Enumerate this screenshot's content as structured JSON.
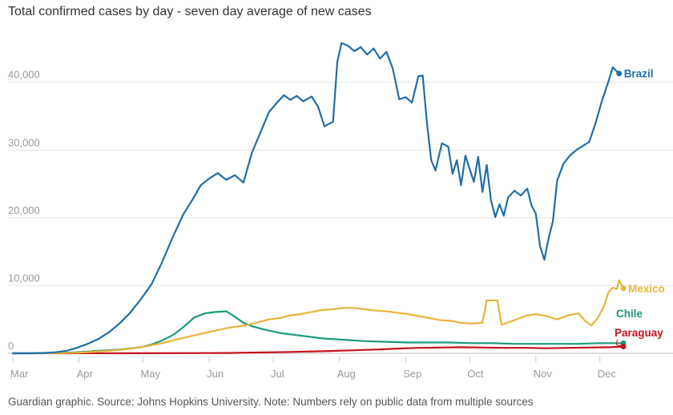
{
  "title": "Total confirmed cases by day - seven day average of new cases",
  "footer": "Guardian graphic. Source: Johns Hopkins University. Note: Numbers rely on public data from multiple sources",
  "chart_data": {
    "type": "line",
    "title": "Total confirmed cases by day - seven day average of new cases",
    "xlabel": "",
    "ylabel": "",
    "x_unit": "days since 1 Mar 2020",
    "xlim": [
      0,
      298
    ],
    "ylim": [
      0,
      46000
    ],
    "grid": true,
    "legend": "inline labels at line ends",
    "x_ticks": [
      {
        "label": "Mar",
        "x": 0
      },
      {
        "label": "Apr",
        "x": 31
      },
      {
        "label": "May",
        "x": 61
      },
      {
        "label": "Jun",
        "x": 92
      },
      {
        "label": "Jul",
        "x": 122
      },
      {
        "label": "Aug",
        "x": 153
      },
      {
        "label": "Sep",
        "x": 184
      },
      {
        "label": "Oct",
        "x": 214
      },
      {
        "label": "Nov",
        "x": 245
      },
      {
        "label": "Dec",
        "x": 275
      }
    ],
    "y_ticks": [
      {
        "label": "0",
        "value": 0
      },
      {
        "label": "10,000",
        "value": 10000
      },
      {
        "label": "20,000",
        "value": 20000
      },
      {
        "label": "30,000",
        "value": 30000
      },
      {
        "label": "40,000",
        "value": 40000
      }
    ],
    "series": [
      {
        "name": "Brazil",
        "color": "#1f6ea8",
        "points": [
          [
            0,
            0
          ],
          [
            10,
            10
          ],
          [
            15,
            60
          ],
          [
            20,
            150
          ],
          [
            25,
            350
          ],
          [
            30,
            800
          ],
          [
            35,
            1400
          ],
          [
            40,
            2100
          ],
          [
            45,
            3100
          ],
          [
            50,
            4400
          ],
          [
            55,
            6000
          ],
          [
            60,
            8000
          ],
          [
            65,
            10200
          ],
          [
            70,
            13500
          ],
          [
            75,
            17200
          ],
          [
            80,
            20600
          ],
          [
            84,
            22600
          ],
          [
            88,
            24800
          ],
          [
            92,
            25800
          ],
          [
            96,
            26600
          ],
          [
            100,
            25600
          ],
          [
            104,
            26300
          ],
          [
            108,
            25200
          ],
          [
            112,
            29600
          ],
          [
            116,
            32600
          ],
          [
            120,
            35600
          ],
          [
            124,
            37100
          ],
          [
            127,
            38100
          ],
          [
            130,
            37400
          ],
          [
            133,
            38000
          ],
          [
            136,
            37200
          ],
          [
            140,
            37900
          ],
          [
            143,
            36400
          ],
          [
            146,
            33500
          ],
          [
            150,
            34200
          ],
          [
            152,
            43000
          ],
          [
            154,
            45800
          ],
          [
            157,
            45400
          ],
          [
            160,
            44600
          ],
          [
            163,
            45200
          ],
          [
            166,
            44100
          ],
          [
            169,
            45000
          ],
          [
            172,
            43500
          ],
          [
            175,
            44500
          ],
          [
            178,
            42000
          ],
          [
            181,
            37500
          ],
          [
            184,
            37800
          ],
          [
            187,
            37000
          ],
          [
            190,
            40900
          ],
          [
            192,
            41000
          ],
          [
            194,
            34000
          ],
          [
            196,
            28500
          ],
          [
            198,
            27000
          ],
          [
            201,
            31000
          ],
          [
            204,
            30500
          ],
          [
            206,
            26500
          ],
          [
            208,
            28500
          ],
          [
            210,
            24800
          ],
          [
            212,
            29200
          ],
          [
            214,
            27200
          ],
          [
            216,
            25300
          ],
          [
            218,
            29000
          ],
          [
            220,
            23800
          ],
          [
            222,
            27800
          ],
          [
            224,
            22600
          ],
          [
            226,
            20100
          ],
          [
            228,
            22000
          ],
          [
            230,
            20300
          ],
          [
            232,
            23000
          ],
          [
            235,
            24000
          ],
          [
            238,
            23300
          ],
          [
            241,
            24300
          ],
          [
            243,
            21800
          ],
          [
            245,
            20600
          ],
          [
            247,
            15800
          ],
          [
            249,
            13800
          ],
          [
            251,
            17000
          ],
          [
            253,
            19500
          ],
          [
            255,
            25500
          ],
          [
            258,
            28000
          ],
          [
            261,
            29200
          ],
          [
            264,
            30000
          ],
          [
            267,
            30600
          ],
          [
            270,
            31200
          ],
          [
            273,
            34000
          ],
          [
            276,
            37300
          ],
          [
            279,
            40100
          ],
          [
            281,
            42200
          ],
          [
            284,
            41300
          ]
        ]
      },
      {
        "name": "Mexico",
        "color": "#e8b43a",
        "points": [
          [
            0,
            0
          ],
          [
            20,
            20
          ],
          [
            30,
            80
          ],
          [
            40,
            250
          ],
          [
            50,
            500
          ],
          [
            60,
            900
          ],
          [
            70,
            1500
          ],
          [
            80,
            2300
          ],
          [
            90,
            3000
          ],
          [
            100,
            3700
          ],
          [
            110,
            4200
          ],
          [
            115,
            4600
          ],
          [
            120,
            5000
          ],
          [
            125,
            5200
          ],
          [
            130,
            5600
          ],
          [
            135,
            5800
          ],
          [
            140,
            6100
          ],
          [
            145,
            6400
          ],
          [
            150,
            6500
          ],
          [
            155,
            6700
          ],
          [
            160,
            6700
          ],
          [
            165,
            6500
          ],
          [
            170,
            6300
          ],
          [
            175,
            6200
          ],
          [
            180,
            6000
          ],
          [
            185,
            5800
          ],
          [
            190,
            5500
          ],
          [
            195,
            5200
          ],
          [
            200,
            4900
          ],
          [
            205,
            4800
          ],
          [
            210,
            4500
          ],
          [
            215,
            4400
          ],
          [
            220,
            4500
          ],
          [
            222,
            7800
          ],
          [
            227,
            7800
          ],
          [
            229,
            4200
          ],
          [
            235,
            4900
          ],
          [
            240,
            5500
          ],
          [
            245,
            5800
          ],
          [
            250,
            5500
          ],
          [
            255,
            5000
          ],
          [
            260,
            5600
          ],
          [
            265,
            5900
          ],
          [
            268,
            4800
          ],
          [
            271,
            4100
          ],
          [
            274,
            5200
          ],
          [
            277,
            7000
          ],
          [
            279,
            9000
          ],
          [
            281,
            9700
          ],
          [
            283,
            9500
          ],
          [
            284,
            10800
          ],
          [
            286,
            9600
          ]
        ]
      },
      {
        "name": "Chile",
        "color": "#1d9a7c",
        "points": [
          [
            0,
            0
          ],
          [
            20,
            30
          ],
          [
            30,
            150
          ],
          [
            40,
            350
          ],
          [
            50,
            550
          ],
          [
            60,
            900
          ],
          [
            65,
            1300
          ],
          [
            70,
            1900
          ],
          [
            75,
            2700
          ],
          [
            80,
            3900
          ],
          [
            85,
            5300
          ],
          [
            90,
            5900
          ],
          [
            95,
            6100
          ],
          [
            100,
            6200
          ],
          [
            104,
            5400
          ],
          [
            108,
            4500
          ],
          [
            112,
            4000
          ],
          [
            118,
            3500
          ],
          [
            125,
            3000
          ],
          [
            135,
            2600
          ],
          [
            145,
            2200
          ],
          [
            155,
            2000
          ],
          [
            165,
            1800
          ],
          [
            175,
            1700
          ],
          [
            185,
            1600
          ],
          [
            195,
            1600
          ],
          [
            205,
            1600
          ],
          [
            215,
            1500
          ],
          [
            225,
            1500
          ],
          [
            235,
            1400
          ],
          [
            245,
            1400
          ],
          [
            255,
            1400
          ],
          [
            265,
            1400
          ],
          [
            275,
            1500
          ],
          [
            284,
            1500
          ],
          [
            286,
            1500
          ]
        ]
      },
      {
        "name": "Paraguay",
        "color": "#c4121d",
        "points": [
          [
            0,
            0
          ],
          [
            60,
            10
          ],
          [
            100,
            50
          ],
          [
            130,
            200
          ],
          [
            150,
            350
          ],
          [
            160,
            450
          ],
          [
            170,
            550
          ],
          [
            180,
            700
          ],
          [
            190,
            800
          ],
          [
            200,
            850
          ],
          [
            210,
            900
          ],
          [
            220,
            850
          ],
          [
            230,
            800
          ],
          [
            240,
            800
          ],
          [
            250,
            750
          ],
          [
            260,
            800
          ],
          [
            270,
            850
          ],
          [
            280,
            900
          ],
          [
            286,
            1000
          ]
        ]
      }
    ]
  }
}
